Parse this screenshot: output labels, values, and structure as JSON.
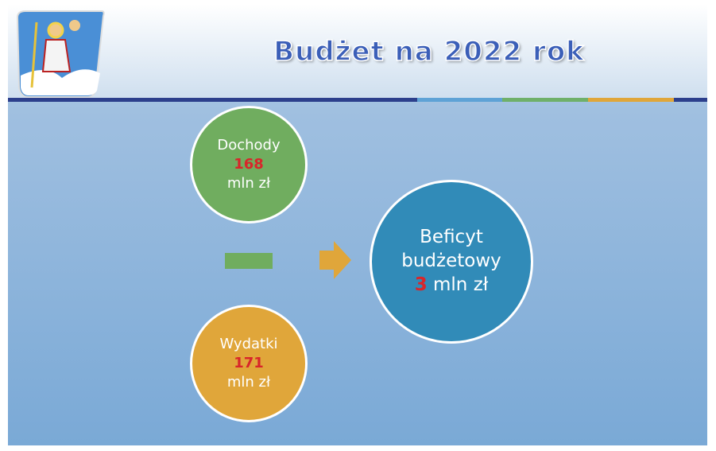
{
  "header": {
    "title": "Budżet na 2022 rok"
  },
  "circles": [
    {
      "label": "Dochody",
      "value": "168",
      "unit": "mln zł"
    },
    {
      "label": "Wydatki",
      "value": "171",
      "unit": "mln zł"
    },
    {
      "label": "Beficyt budżetowy",
      "value": "3",
      "unit": "mln zł"
    }
  ]
}
